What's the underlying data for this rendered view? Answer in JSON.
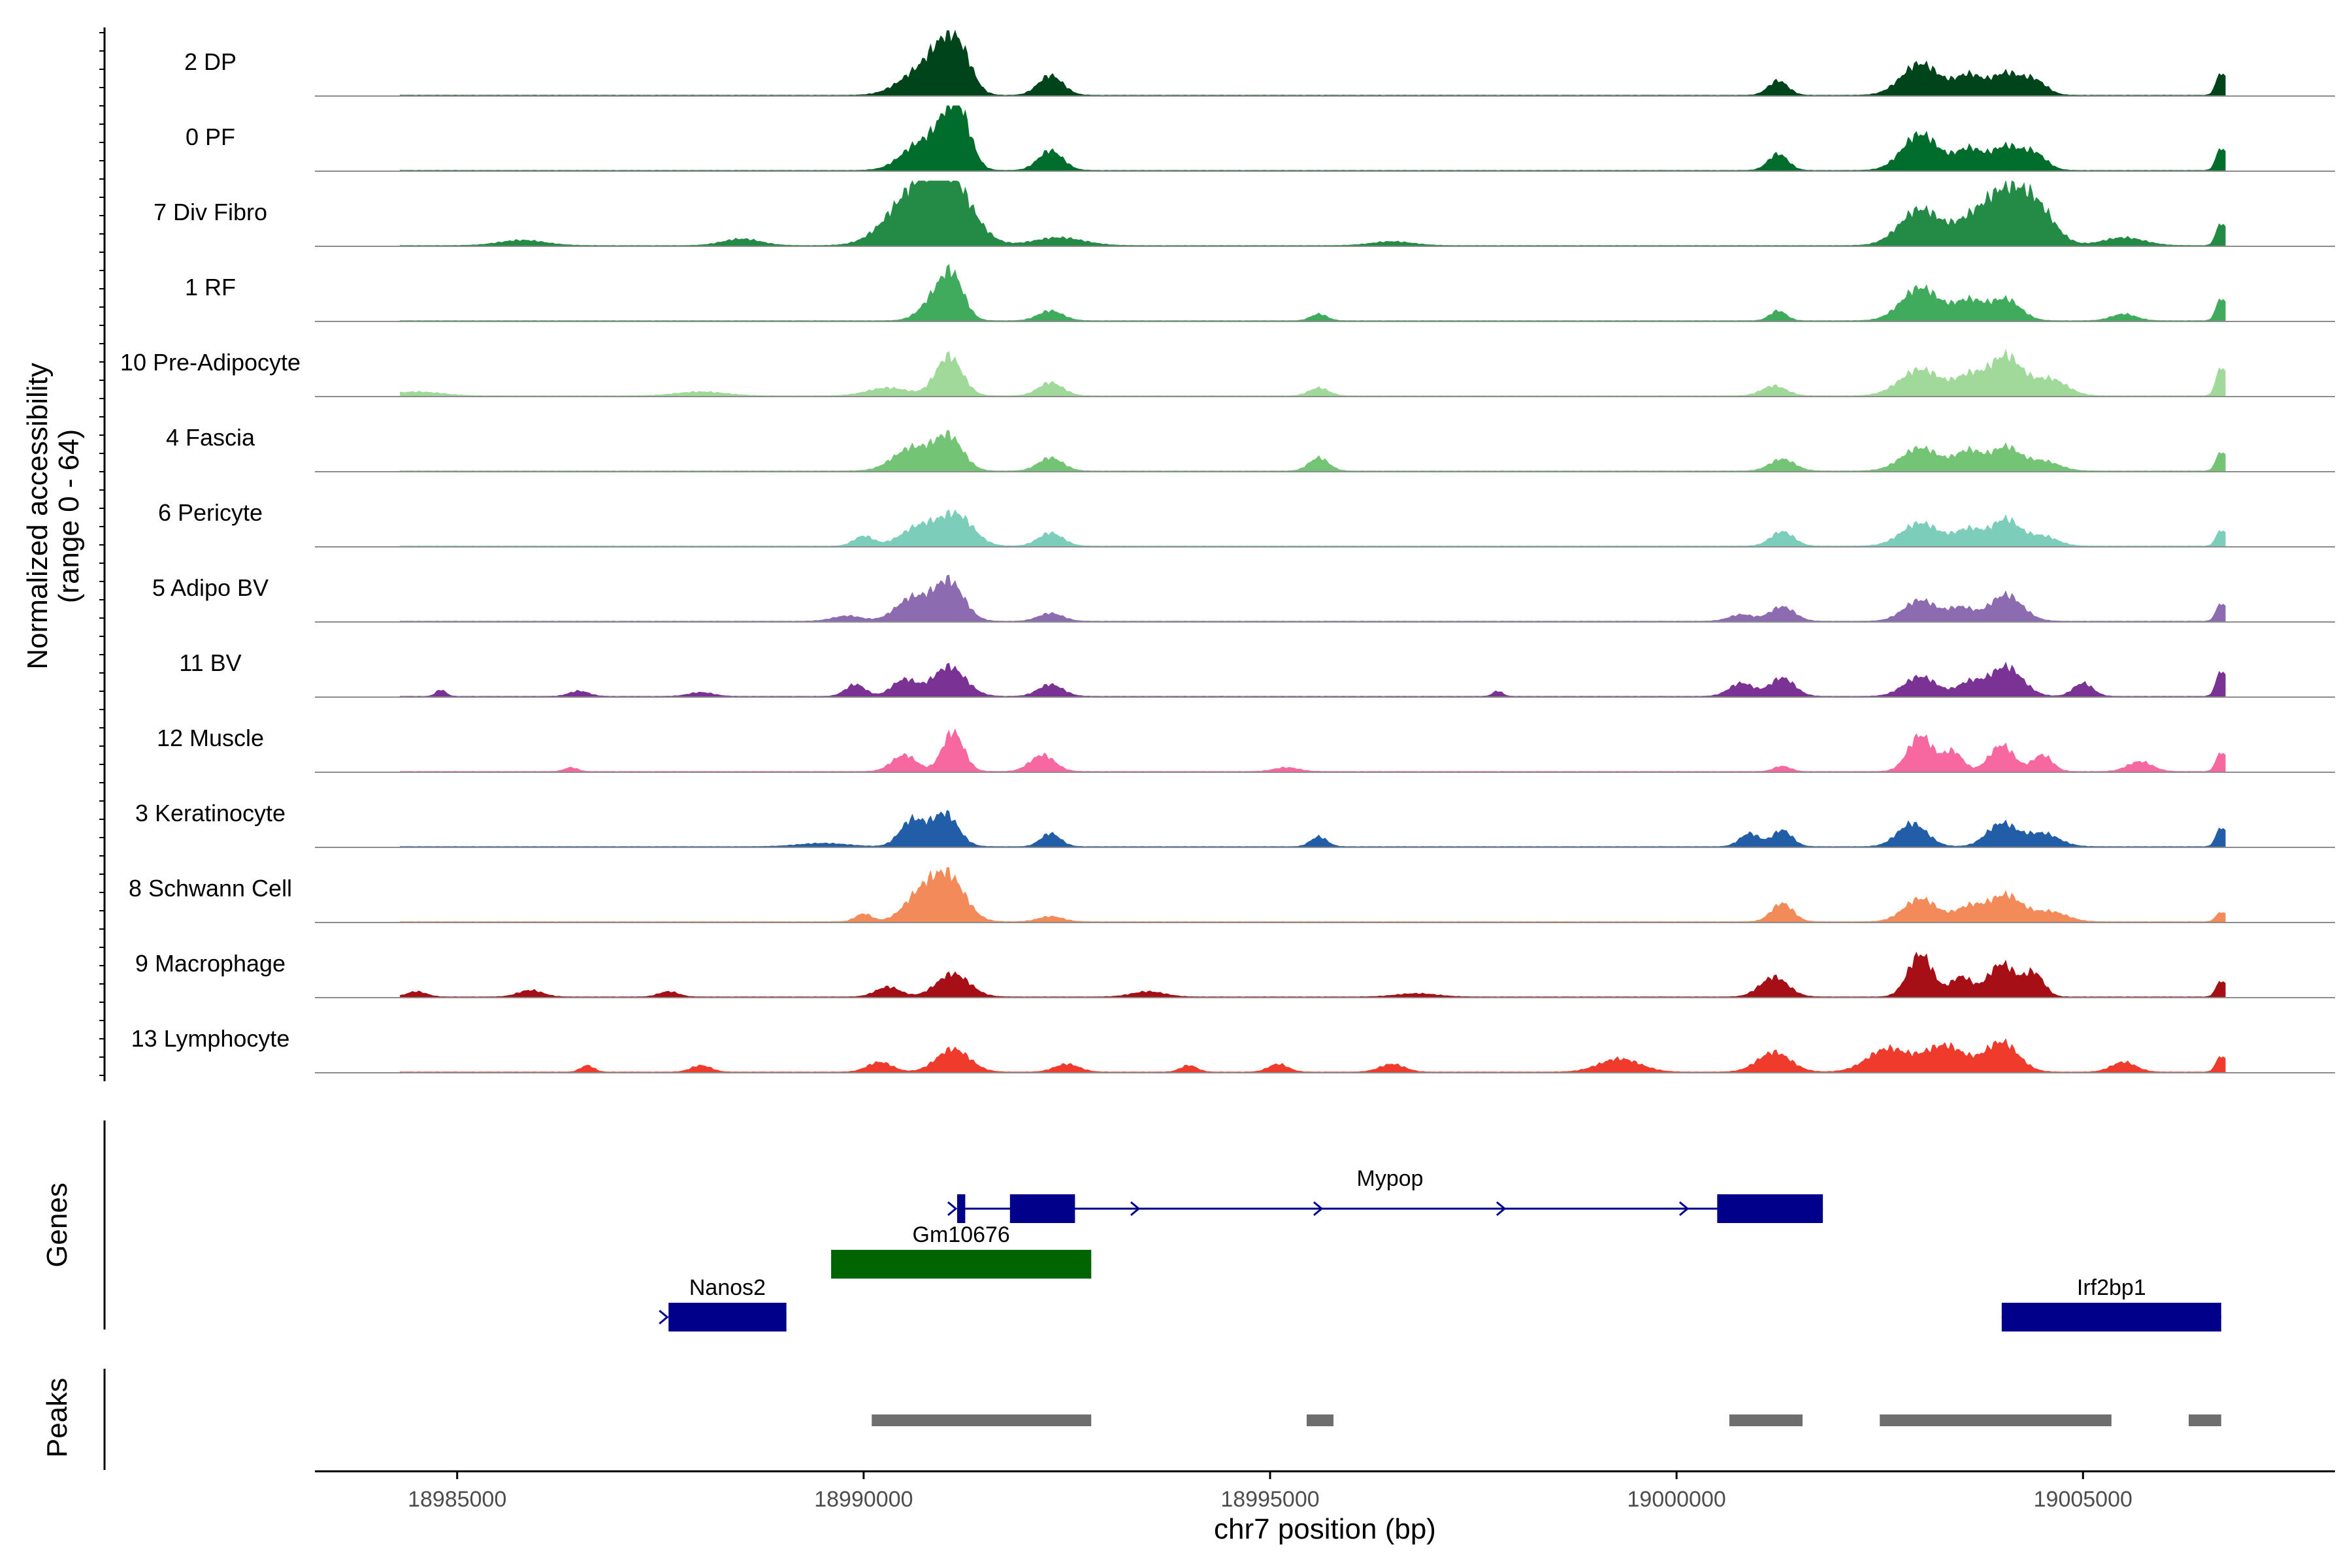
{
  "chart_data": {
    "type": "area",
    "title": "",
    "ylabel": "Normalized accessibility",
    "ylabel_sub": "(range 0 - 64)",
    "xlabel": "chr7 position (bp)",
    "xlim": [
      18983250,
      19008100
    ],
    "x_ticks": [
      18985000,
      18990000,
      18995000,
      19000000,
      19005000
    ],
    "x_tick_labels": [
      "18985000",
      "18990000",
      "18995000",
      "19000000",
      "19005000"
    ],
    "ylim": [
      0,
      64
    ],
    "tracks": [
      {
        "name": "2 DP",
        "color": "#00441b",
        "peaks": [
          [
            18990700,
            0.35,
            260
          ],
          [
            18991000,
            0.55,
            180
          ],
          [
            18991200,
            0.45,
            150
          ],
          [
            18992300,
            0.3,
            150
          ],
          [
            19001250,
            0.22,
            120
          ],
          [
            19003000,
            0.48,
            230
          ],
          [
            19003600,
            0.3,
            170
          ],
          [
            19004050,
            0.32,
            170
          ],
          [
            19004400,
            0.22,
            150
          ],
          [
            19006700,
            0.35,
            60
          ]
        ]
      },
      {
        "name": "0 PF",
        "color": "#006d2c",
        "peaks": [
          [
            18990700,
            0.4,
            230
          ],
          [
            18991050,
            0.6,
            160
          ],
          [
            18991200,
            0.55,
            140
          ],
          [
            18992300,
            0.3,
            150
          ],
          [
            19001250,
            0.25,
            120
          ],
          [
            19003000,
            0.55,
            220
          ],
          [
            19003600,
            0.32,
            170
          ],
          [
            19004050,
            0.35,
            170
          ],
          [
            19004400,
            0.25,
            150
          ],
          [
            19006700,
            0.35,
            60
          ]
        ]
      },
      {
        "name": "7 Div Fibro",
        "color": "#238b45",
        "peaks": [
          [
            18985800,
            0.08,
            280
          ],
          [
            18988500,
            0.1,
            230
          ],
          [
            18990600,
            0.7,
            320
          ],
          [
            18991050,
            0.9,
            280
          ],
          [
            18992400,
            0.12,
            300
          ],
          [
            18996500,
            0.06,
            250
          ],
          [
            19003000,
            0.55,
            250
          ],
          [
            19003600,
            0.3,
            200
          ],
          [
            19004000,
            0.7,
            230
          ],
          [
            19004400,
            0.6,
            230
          ],
          [
            19005500,
            0.12,
            250
          ],
          [
            19006700,
            0.35,
            60
          ]
        ]
      },
      {
        "name": "1 RF",
        "color": "#41ab5d",
        "peaks": [
          [
            18990900,
            0.35,
            180
          ],
          [
            18991100,
            0.55,
            140
          ],
          [
            18992300,
            0.15,
            150
          ],
          [
            18995600,
            0.1,
            100
          ],
          [
            19001250,
            0.15,
            100
          ],
          [
            19003000,
            0.5,
            230
          ],
          [
            19003600,
            0.3,
            180
          ],
          [
            19004050,
            0.32,
            180
          ],
          [
            19005500,
            0.1,
            150
          ],
          [
            19006700,
            0.35,
            60
          ]
        ]
      },
      {
        "name": "10 Pre-Adipocyte",
        "color": "#a1d99b",
        "peaks": [
          [
            18984500,
            0.06,
            300
          ],
          [
            18988000,
            0.06,
            300
          ],
          [
            18990300,
            0.12,
            250
          ],
          [
            18991050,
            0.6,
            160
          ],
          [
            18992300,
            0.2,
            150
          ],
          [
            18995600,
            0.12,
            120
          ],
          [
            19001200,
            0.15,
            150
          ],
          [
            19003000,
            0.4,
            250
          ],
          [
            19003600,
            0.28,
            170
          ],
          [
            19004050,
            0.6,
            200
          ],
          [
            19004600,
            0.25,
            200
          ],
          [
            19006700,
            0.45,
            60
          ]
        ]
      },
      {
        "name": "4 Fascia",
        "color": "#74c476",
        "peaks": [
          [
            18990600,
            0.35,
            230
          ],
          [
            18991050,
            0.5,
            170
          ],
          [
            18992300,
            0.2,
            150
          ],
          [
            18995600,
            0.2,
            120
          ],
          [
            19001300,
            0.18,
            150
          ],
          [
            19003000,
            0.35,
            230
          ],
          [
            19003600,
            0.3,
            170
          ],
          [
            19004050,
            0.35,
            170
          ],
          [
            19004500,
            0.15,
            200
          ],
          [
            19006700,
            0.3,
            60
          ]
        ]
      },
      {
        "name": "6 Pericyte",
        "color": "#7dcdbb",
        "peaks": [
          [
            18990000,
            0.15,
            120
          ],
          [
            18990700,
            0.3,
            230
          ],
          [
            18991150,
            0.45,
            200
          ],
          [
            18992300,
            0.2,
            150
          ],
          [
            19001300,
            0.22,
            140
          ],
          [
            19003000,
            0.35,
            230
          ],
          [
            19003600,
            0.25,
            170
          ],
          [
            19004050,
            0.4,
            170
          ],
          [
            19004500,
            0.15,
            180
          ],
          [
            19006700,
            0.25,
            60
          ]
        ]
      },
      {
        "name": "5 Adipo BV",
        "color": "#8c6bb1",
        "peaks": [
          [
            18989800,
            0.08,
            180
          ],
          [
            18990600,
            0.35,
            200
          ],
          [
            18991050,
            0.6,
            180
          ],
          [
            18992300,
            0.12,
            150
          ],
          [
            19000800,
            0.1,
            150
          ],
          [
            19001300,
            0.22,
            150
          ],
          [
            19003000,
            0.32,
            200
          ],
          [
            19003500,
            0.2,
            150
          ],
          [
            19004050,
            0.4,
            200
          ],
          [
            19006700,
            0.28,
            60
          ]
        ]
      },
      {
        "name": "11 BV",
        "color": "#7a3294",
        "peaks": [
          [
            18984800,
            0.1,
            60
          ],
          [
            18986500,
            0.08,
            120
          ],
          [
            18988000,
            0.06,
            150
          ],
          [
            18989900,
            0.18,
            120
          ],
          [
            18990500,
            0.25,
            150
          ],
          [
            18991050,
            0.45,
            200
          ],
          [
            18992300,
            0.18,
            150
          ],
          [
            18997800,
            0.08,
            60
          ],
          [
            19000800,
            0.2,
            150
          ],
          [
            19001300,
            0.28,
            150
          ],
          [
            19003000,
            0.3,
            200
          ],
          [
            19003600,
            0.2,
            150
          ],
          [
            19004050,
            0.45,
            200
          ],
          [
            19005000,
            0.2,
            120
          ],
          [
            19006700,
            0.4,
            60
          ]
        ]
      },
      {
        "name": "12 Muscle",
        "color": "#f768a1",
        "peaks": [
          [
            18986400,
            0.06,
            80
          ],
          [
            18990500,
            0.25,
            150
          ],
          [
            18991100,
            0.6,
            130
          ],
          [
            18992200,
            0.25,
            150
          ],
          [
            18995200,
            0.06,
            150
          ],
          [
            19001300,
            0.08,
            100
          ],
          [
            19003000,
            0.55,
            150
          ],
          [
            19003400,
            0.3,
            120
          ],
          [
            19004000,
            0.4,
            150
          ],
          [
            19004500,
            0.25,
            120
          ],
          [
            19005700,
            0.15,
            150
          ],
          [
            19006700,
            0.3,
            60
          ]
        ]
      },
      {
        "name": "3 Keratinocyte",
        "color": "#225ea8",
        "peaks": [
          [
            18989500,
            0.05,
            300
          ],
          [
            18990600,
            0.4,
            150
          ],
          [
            18991000,
            0.5,
            160
          ],
          [
            18992300,
            0.2,
            120
          ],
          [
            18995600,
            0.15,
            100
          ],
          [
            19000900,
            0.2,
            120
          ],
          [
            19001300,
            0.25,
            120
          ],
          [
            19002900,
            0.35,
            180
          ],
          [
            19004000,
            0.35,
            180
          ],
          [
            19004500,
            0.2,
            200
          ],
          [
            19006700,
            0.3,
            60
          ]
        ]
      },
      {
        "name": "8 Schwann Cell",
        "color": "#f38a5a",
        "peaks": [
          [
            18990000,
            0.12,
            100
          ],
          [
            18990700,
            0.4,
            200
          ],
          [
            18991050,
            0.65,
            200
          ],
          [
            18992300,
            0.08,
            150
          ],
          [
            19001300,
            0.28,
            130
          ],
          [
            19003000,
            0.35,
            200
          ],
          [
            19003600,
            0.22,
            170
          ],
          [
            19004050,
            0.4,
            200
          ],
          [
            19004600,
            0.15,
            200
          ],
          [
            19006700,
            0.15,
            60
          ]
        ]
      },
      {
        "name": "9 Macrophage",
        "color": "#a50f15",
        "peaks": [
          [
            18984500,
            0.08,
            120
          ],
          [
            18985900,
            0.1,
            150
          ],
          [
            18987600,
            0.08,
            120
          ],
          [
            18990300,
            0.15,
            150
          ],
          [
            18991100,
            0.35,
            200
          ],
          [
            18993500,
            0.08,
            200
          ],
          [
            18996800,
            0.05,
            250
          ],
          [
            19001200,
            0.3,
            170
          ],
          [
            19003000,
            0.65,
            150
          ],
          [
            19003500,
            0.3,
            130
          ],
          [
            19004000,
            0.5,
            170
          ],
          [
            19004400,
            0.35,
            120
          ],
          [
            19006700,
            0.25,
            60
          ]
        ]
      },
      {
        "name": "13 Lymphocyte",
        "color": "#ef3b2c",
        "peaks": [
          [
            18986600,
            0.1,
            80
          ],
          [
            18988000,
            0.1,
            120
          ],
          [
            18990200,
            0.15,
            150
          ],
          [
            18991100,
            0.35,
            200
          ],
          [
            18992500,
            0.12,
            150
          ],
          [
            18994000,
            0.1,
            100
          ],
          [
            18995100,
            0.12,
            120
          ],
          [
            18996500,
            0.12,
            150
          ],
          [
            18999300,
            0.2,
            250
          ],
          [
            19001200,
            0.3,
            200
          ],
          [
            19002600,
            0.35,
            250
          ],
          [
            19003300,
            0.4,
            250
          ],
          [
            19004000,
            0.45,
            200
          ],
          [
            19005500,
            0.15,
            150
          ],
          [
            19006700,
            0.25,
            60
          ]
        ]
      }
    ],
    "genes_track_label": "Genes",
    "genes": [
      {
        "name": "Mypop",
        "color": "#00008b",
        "start": 18991150,
        "end": 19001800,
        "row": 1,
        "strand": "+",
        "exons": [
          [
            18991150,
            18991250
          ],
          [
            18991800,
            18992600
          ],
          [
            19000500,
            19001800
          ]
        ]
      },
      {
        "name": "Gm10676",
        "color": "#006400",
        "start": 18989600,
        "end": 18992800,
        "row": 2,
        "strand": "",
        "exons": [
          [
            18989600,
            18992800
          ]
        ]
      },
      {
        "name": "Nanos2",
        "color": "#00008b",
        "start": 18987600,
        "end": 18989050,
        "row": 3,
        "strand": "+",
        "exons": [
          [
            18987600,
            18989050
          ]
        ]
      },
      {
        "name": "Irf2bp1",
        "color": "#00008b",
        "start": 19004000,
        "end": 19006700,
        "row": 3,
        "strand": "",
        "exons": [
          [
            19004000,
            19006700
          ]
        ]
      }
    ],
    "peaks_track_label": "Peaks",
    "peak_regions": [
      [
        18990100,
        18992800
      ],
      [
        18995450,
        18995780
      ],
      [
        19000650,
        19001550
      ],
      [
        19002500,
        19005350
      ],
      [
        19006300,
        19006700
      ]
    ]
  }
}
